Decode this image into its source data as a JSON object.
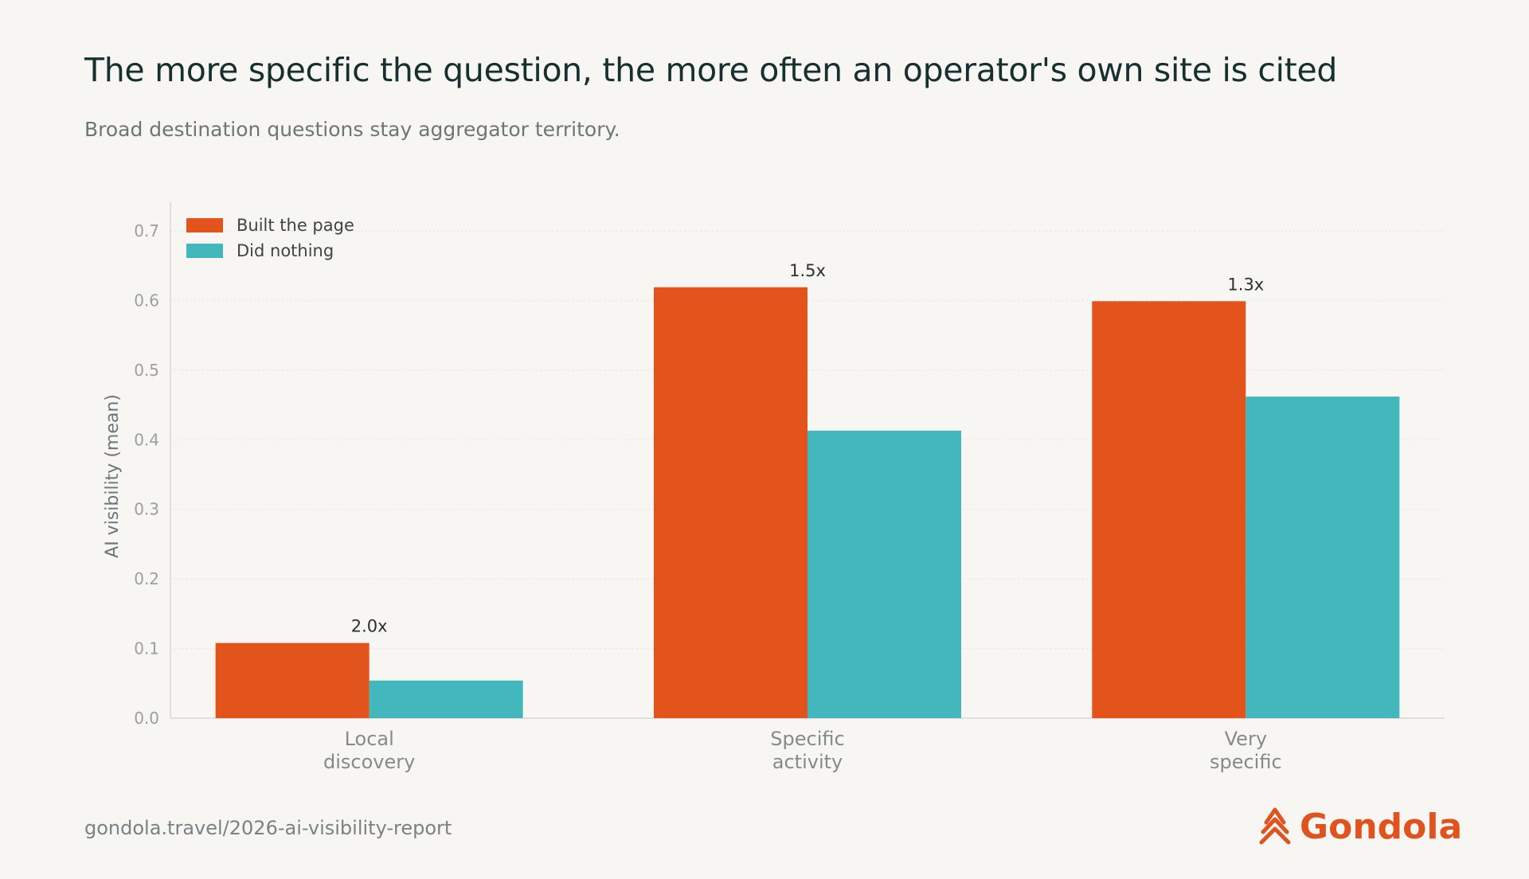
{
  "title": "The more specific the question, the more often an operator's own site is cited",
  "subtitle": "Broad destination questions stay aggregator territory.",
  "footer": {
    "url": "gondola.travel/2026-ai-visibility-report",
    "brand": "Gondola"
  },
  "colors": {
    "built": "#e2541c",
    "nothing": "#43b8bc",
    "brand": "#e0531d"
  },
  "chart_data": {
    "type": "bar",
    "categories": [
      [
        "Local",
        "discovery"
      ],
      [
        "Specific",
        "activity"
      ],
      [
        "Very",
        "specific"
      ]
    ],
    "series": [
      {
        "name": "Built the page",
        "values": [
          0.108,
          0.619,
          0.599
        ]
      },
      {
        "name": "Did nothing",
        "values": [
          0.054,
          0.413,
          0.462
        ]
      }
    ],
    "annotations": [
      "2.0x",
      "1.5x",
      "1.3x"
    ],
    "ylabel": "AI visibility (mean)",
    "xlabel": "",
    "ylim": [
      0,
      0.7
    ],
    "yticks": [
      "0.0",
      "0.1",
      "0.2",
      "0.3",
      "0.4",
      "0.5",
      "0.6",
      "0.7"
    ],
    "grid": true,
    "legend_position": "top-left"
  }
}
